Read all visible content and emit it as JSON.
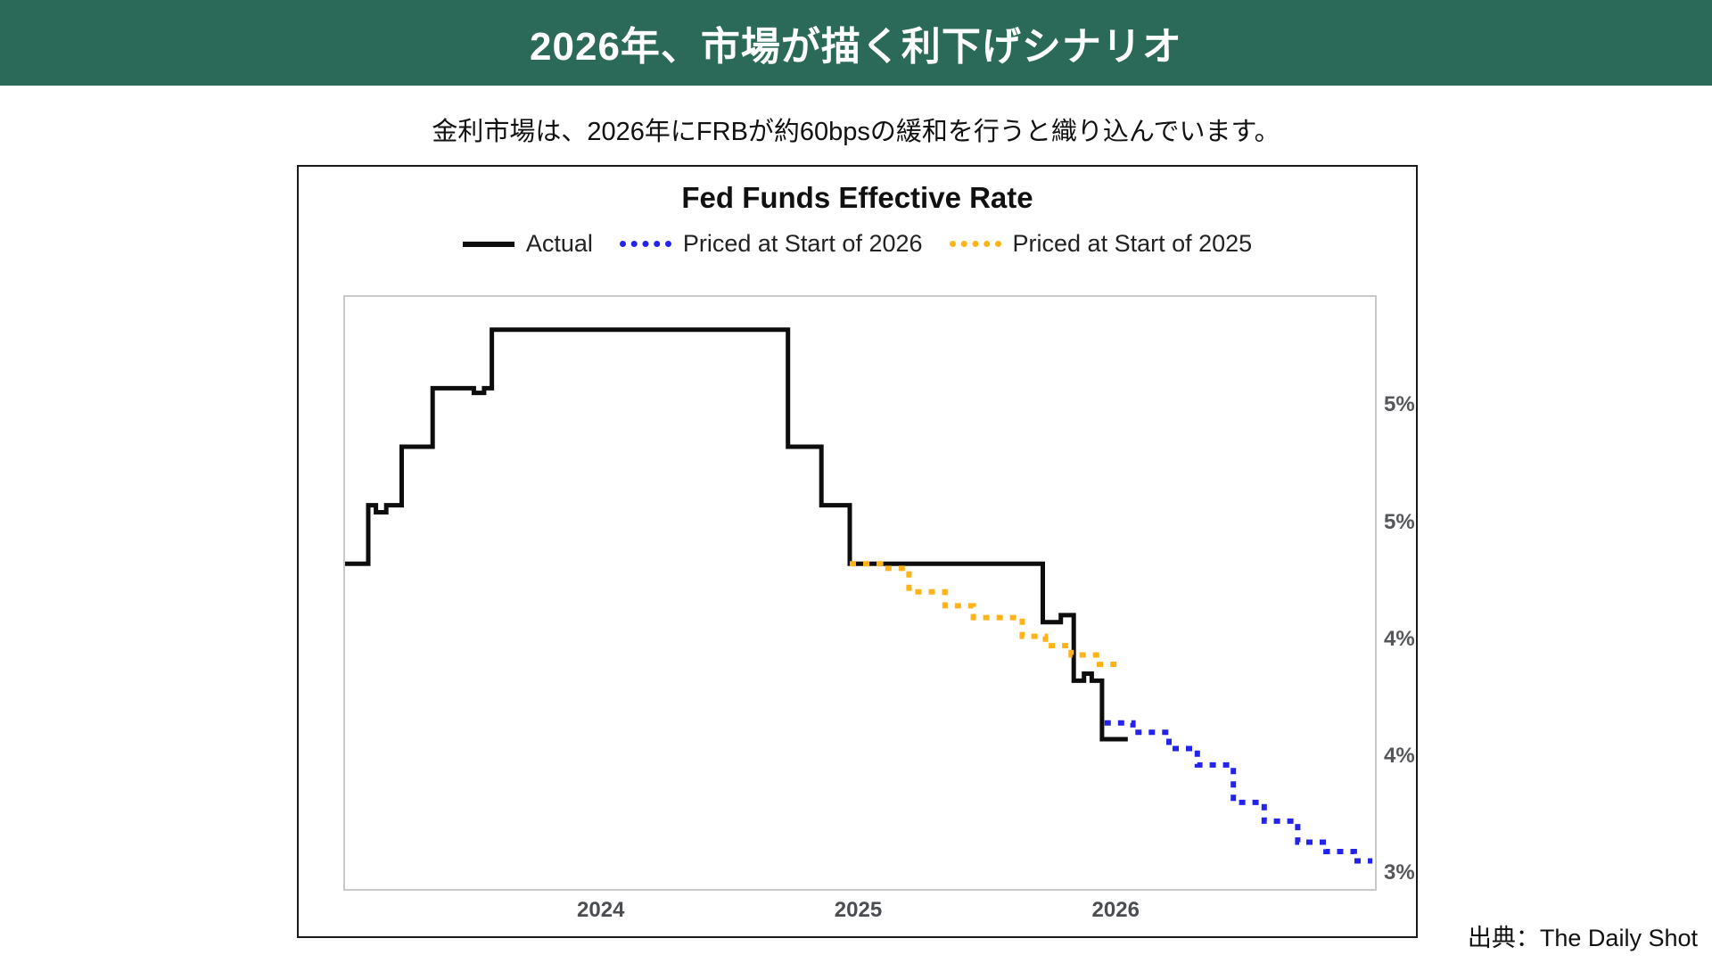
{
  "header": {
    "title": "2026年、市場が描く利下げシナリオ"
  },
  "subtitle": "金利市場は、2026年にFRBが約60bpsの緩和を行うと織り込んでいます。",
  "source": "出典：The Daily Shot",
  "colors": {
    "header_bg": "#2B6A58",
    "actual": "#0d0d0d",
    "priced_2026": "#2323EC",
    "priced_2025": "#FFB318",
    "axis_text": "#55575b",
    "plot_border": "#c9c9c9"
  },
  "chart_data": {
    "type": "line",
    "title": "Fed Funds Effective Rate",
    "xlabel": "",
    "ylabel": "",
    "grid": false,
    "legend_position": "top",
    "x_range": [
      2023.0,
      2027.0
    ],
    "y_range": [
      2.94,
      5.47
    ],
    "x_ticks": [
      {
        "t": 2024,
        "label": "2024"
      },
      {
        "t": 2025,
        "label": "2025"
      },
      {
        "t": 2026,
        "label": "2026"
      }
    ],
    "y_ticks": [
      {
        "v": 5.0,
        "label": "5%"
      },
      {
        "v": 4.5,
        "label": "5%"
      },
      {
        "v": 4.0,
        "label": "4%"
      },
      {
        "v": 3.5,
        "label": "4%"
      },
      {
        "v": 3.0,
        "label": "3%"
      }
    ],
    "series": [
      {
        "name": "Actual",
        "style": "solid",
        "color_key": "actual",
        "step": true,
        "points": [
          [
            2023.0,
            4.33
          ],
          [
            2023.09,
            4.58
          ],
          [
            2023.12,
            4.55
          ],
          [
            2023.16,
            4.58
          ],
          [
            2023.22,
            4.83
          ],
          [
            2023.34,
            5.08
          ],
          [
            2023.5,
            5.06
          ],
          [
            2023.54,
            5.08
          ],
          [
            2023.57,
            5.33
          ],
          [
            2024.72,
            4.83
          ],
          [
            2024.85,
            4.58
          ],
          [
            2024.96,
            4.33
          ],
          [
            2025.71,
            4.08
          ],
          [
            2025.78,
            4.11
          ],
          [
            2025.83,
            3.83
          ],
          [
            2025.87,
            3.86
          ],
          [
            2025.9,
            3.83
          ],
          [
            2025.94,
            3.58
          ],
          [
            2026.04,
            3.58
          ]
        ]
      },
      {
        "name": "Priced at Start of 2026",
        "style": "dotted",
        "color_key": "priced_2026",
        "step": true,
        "points": [
          [
            2025.95,
            3.65
          ],
          [
            2026.06,
            3.61
          ],
          [
            2026.2,
            3.54
          ],
          [
            2026.31,
            3.47
          ],
          [
            2026.45,
            3.31
          ],
          [
            2026.57,
            3.23
          ],
          [
            2026.7,
            3.14
          ],
          [
            2026.81,
            3.1
          ],
          [
            2026.92,
            3.06
          ],
          [
            2026.99,
            3.06
          ]
        ]
      },
      {
        "name": "Priced at Start of 2025",
        "style": "dotted",
        "color_key": "priced_2025",
        "step": true,
        "points": [
          [
            2024.96,
            4.33
          ],
          [
            2025.08,
            4.31
          ],
          [
            2025.19,
            4.21
          ],
          [
            2025.33,
            4.15
          ],
          [
            2025.44,
            4.1
          ],
          [
            2025.63,
            4.02
          ],
          [
            2025.72,
            3.98
          ],
          [
            2025.82,
            3.94
          ],
          [
            2025.93,
            3.9
          ],
          [
            2026.0,
            3.9
          ]
        ]
      }
    ]
  }
}
